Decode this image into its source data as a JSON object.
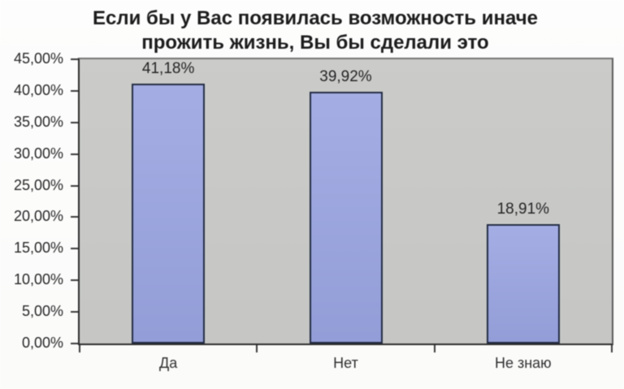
{
  "chart_data": {
    "type": "bar",
    "title": "Если бы у Вас появилась возможность иначе прожить жизнь, Вы бы сделали это",
    "title_lines": [
      "Если бы у Вас появилась возможность иначе",
      "прожить жизнь, Вы бы сделали это"
    ],
    "categories": [
      "Да",
      "Нет",
      "Не знаю"
    ],
    "values": [
      41.18,
      39.92,
      18.91
    ],
    "value_labels": [
      "41,18%",
      "39,92%",
      "18,91%"
    ],
    "y_ticks": [
      "45,00%",
      "40,00%",
      "35,00%",
      "30,00%",
      "25,00%",
      "20,00%",
      "15,00%",
      "10,00%",
      "5,00%",
      "0,00%"
    ],
    "y_tick_values": [
      45,
      40,
      35,
      30,
      25,
      20,
      15,
      10,
      5,
      0
    ],
    "ylim": [
      0,
      45
    ],
    "grid": false,
    "legend": false,
    "xlabel": "",
    "ylabel": "",
    "colors": {
      "bar_fill": "#9aa4de",
      "bar_border": "#222c42",
      "plot_bg": "#c9cac8",
      "axis": "#2c2c2c",
      "text": "#242424",
      "background": "#fdfdfd"
    }
  }
}
